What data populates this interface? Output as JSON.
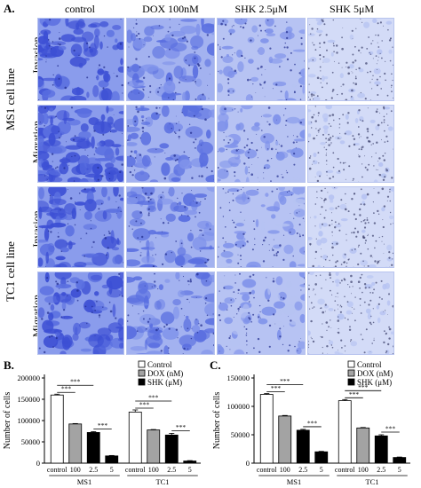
{
  "panel_a": {
    "letter": "A.",
    "columns": [
      "control",
      "DOX 100nM",
      "SHK 2.5μM",
      "SHK 5μM"
    ],
    "cell_lines": [
      {
        "name": "MS1 cell line",
        "rows": [
          "Invasion",
          "Migration"
        ]
      },
      {
        "name": "TC1 cell line",
        "rows": [
          "Invasion",
          "Migration"
        ]
      }
    ],
    "stain_colors": [
      "#3c4fd4",
      "#5a6fe0",
      "#7f92ea",
      "#b6c3f2"
    ]
  },
  "panel_b": {
    "letter": "B.",
    "ylabel": "Number of cells",
    "yticks": [
      "0",
      "50000",
      "100000",
      "150000",
      "200000"
    ],
    "groups": [
      "MS1",
      "TC1"
    ],
    "significance_label": "***"
  },
  "panel_c": {
    "letter": "C.",
    "ylabel": "Number of cells",
    "yticks": [
      "0",
      "50000",
      "100000",
      "150000"
    ],
    "groups": [
      "MS1",
      "TC1"
    ],
    "significance_label": "***"
  },
  "legend": [
    "Control",
    "DOX (nM)",
    "SHK (μM)"
  ],
  "chart_data": [
    {
      "type": "bar",
      "title": "",
      "xlabel": "",
      "ylabel": "Number of cells",
      "ylim": [
        0,
        200000
      ],
      "categories": [
        "control",
        "100",
        "2.5",
        "5",
        "control",
        "100",
        "2.5",
        "5"
      ],
      "groups": [
        "MS1",
        "TC1"
      ],
      "values": [
        160000,
        92000,
        72000,
        17000,
        120000,
        78000,
        66000,
        5000
      ],
      "errors": [
        2000,
        1000,
        2000,
        1000,
        5000,
        1000,
        4000,
        1000
      ],
      "series": [
        {
          "name": "Control",
          "color": "#ffffff",
          "indices": [
            0,
            4
          ]
        },
        {
          "name": "DOX (nM)",
          "color": "#a3a3a3",
          "indices": [
            1,
            5
          ]
        },
        {
          "name": "SHK (μM)",
          "color": "#000000",
          "indices": [
            2,
            3,
            6,
            7
          ]
        }
      ],
      "significance": [
        [
          0,
          1
        ],
        [
          0,
          2
        ],
        [
          2,
          3
        ],
        [
          4,
          5
        ],
        [
          4,
          6
        ],
        [
          6,
          7
        ]
      ]
    },
    {
      "type": "bar",
      "title": "",
      "xlabel": "",
      "ylabel": "Number of cells",
      "ylim": [
        0,
        150000
      ],
      "categories": [
        "control",
        "100",
        "2.5",
        "5",
        "control",
        "100",
        "2.5",
        "5"
      ],
      "groups": [
        "MS1",
        "TC1"
      ],
      "values": [
        121000,
        83000,
        58000,
        20000,
        110000,
        62000,
        48000,
        10000
      ],
      "errors": [
        1500,
        1000,
        1500,
        800,
        2000,
        800,
        2000,
        800
      ],
      "series": [
        {
          "name": "Control",
          "color": "#ffffff",
          "indices": [
            0,
            4
          ]
        },
        {
          "name": "DOX (nM)",
          "color": "#a3a3a3",
          "indices": [
            1,
            5
          ]
        },
        {
          "name": "SHK (μM)",
          "color": "#000000",
          "indices": [
            2,
            3,
            6,
            7
          ]
        }
      ],
      "significance": [
        [
          0,
          1
        ],
        [
          0,
          2
        ],
        [
          2,
          3
        ],
        [
          4,
          5
        ],
        [
          4,
          6
        ],
        [
          6,
          7
        ]
      ]
    }
  ]
}
